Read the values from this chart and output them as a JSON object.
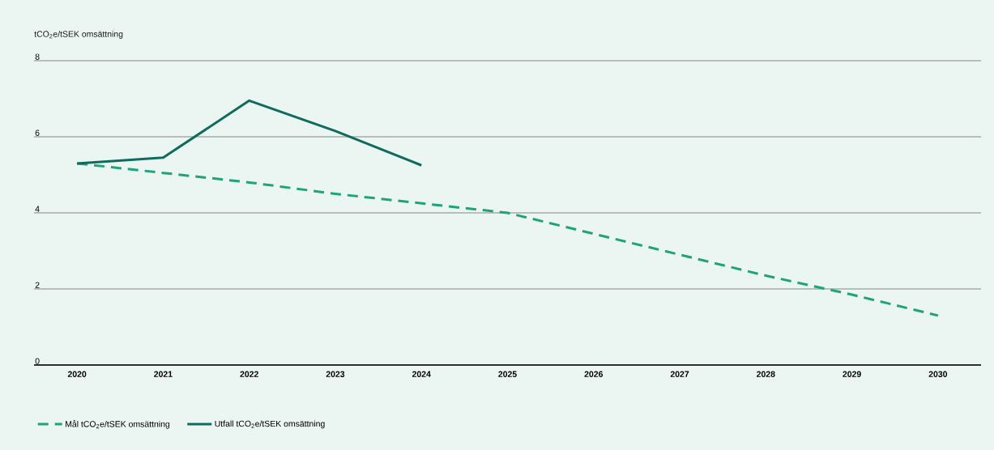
{
  "chart_data": {
    "type": "line",
    "ylabel": "tCO$_{2}$e/tSEK omsättning",
    "categories": [
      "2020",
      "2021",
      "2022",
      "2023",
      "2024",
      "2025",
      "2026",
      "2027",
      "2028",
      "2029",
      "2030"
    ],
    "series": [
      {
        "name": "Mål tCO$_{2}$e/tSEK omsättning",
        "color": "#1fa37a",
        "line_style": "dashed",
        "values": [
          5.3,
          5.05,
          4.8,
          4.5,
          4.25,
          4.0,
          3.45,
          2.9,
          2.35,
          1.85,
          1.3
        ]
      },
      {
        "name": "Utfall tCO$_{2}$e/tSEK omsättning",
        "color": "#0f6b5e",
        "line_style": "solid",
        "values": [
          5.3,
          5.45,
          6.95,
          6.15,
          5.25,
          null,
          null,
          null,
          null,
          null,
          null
        ]
      }
    ],
    "ylim": [
      0,
      8
    ],
    "yticks": [
      0,
      2,
      4,
      6,
      8
    ],
    "grid": "y",
    "legend": "bottom left",
    "marker": "none"
  }
}
